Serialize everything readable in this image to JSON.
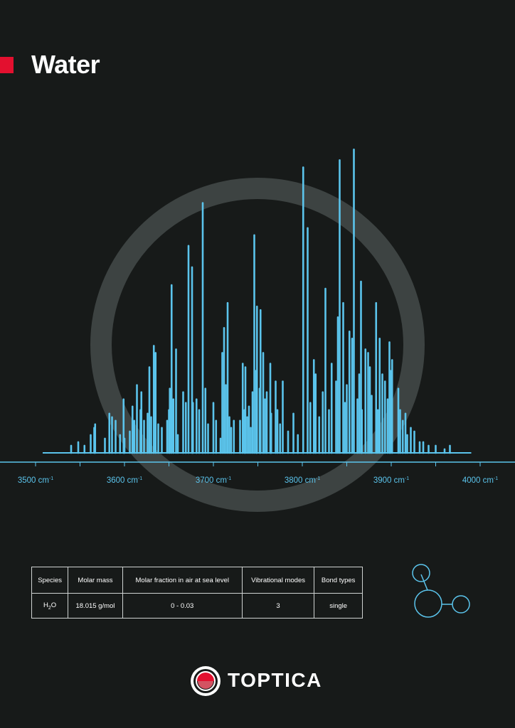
{
  "header": {
    "title": "Water"
  },
  "chart_data": {
    "type": "bar",
    "title": "",
    "xlabel": "",
    "ylabel": "",
    "x_unit": "cm-1",
    "xlim": [
      3500,
      4000
    ],
    "ylim": [
      0,
      1
    ],
    "grid": false,
    "colors": {
      "lines": "#5bc4ec",
      "axis": "#5bc4ec",
      "ring": "#3d4342"
    },
    "tick_labels": [
      {
        "value": 3500,
        "text": "3500 cm",
        "sup": "-1"
      },
      {
        "value": 3600,
        "text": "3600 cm",
        "sup": "-1"
      },
      {
        "value": 3700,
        "text": "3700 cm",
        "sup": "-1"
      },
      {
        "value": 3800,
        "text": "3800 cm",
        "sup": "-1"
      },
      {
        "value": 3900,
        "text": "3900 cm",
        "sup": "-1"
      },
      {
        "value": 4000,
        "text": "4000 cm",
        "sup": "-1"
      }
    ],
    "lines": [
      {
        "x": 3540,
        "y": 0.02
      },
      {
        "x": 3548,
        "y": 0.03
      },
      {
        "x": 3555,
        "y": 0.02
      },
      {
        "x": 3562,
        "y": 0.05
      },
      {
        "x": 3566,
        "y": 0.07
      },
      {
        "x": 3567,
        "y": 0.08
      },
      {
        "x": 3578,
        "y": 0.04
      },
      {
        "x": 3583,
        "y": 0.11
      },
      {
        "x": 3586,
        "y": 0.1
      },
      {
        "x": 3590,
        "y": 0.09
      },
      {
        "x": 3595,
        "y": 0.05
      },
      {
        "x": 3600,
        "y": 0.04
      },
      {
        "x": 3606,
        "y": 0.06
      },
      {
        "x": 3609,
        "y": 0.13
      },
      {
        "x": 3611,
        "y": 0.09
      },
      {
        "x": 3614,
        "y": 0.19
      },
      {
        "x": 3619,
        "y": 0.17
      },
      {
        "x": 3622,
        "y": 0.09
      },
      {
        "x": 3626,
        "y": 0.11
      },
      {
        "x": 3628,
        "y": 0.24
      },
      {
        "x": 3630,
        "y": 0.1
      },
      {
        "x": 3633,
        "y": 0.3
      },
      {
        "x": 3635,
        "y": 0.28
      },
      {
        "x": 3638,
        "y": 0.08
      },
      {
        "x": 3648,
        "y": 0.09
      },
      {
        "x": 3650,
        "y": 0.12
      },
      {
        "x": 3651,
        "y": 0.18
      },
      {
        "x": 3653,
        "y": 0.47
      },
      {
        "x": 3655,
        "y": 0.15
      },
      {
        "x": 3658,
        "y": 0.29
      },
      {
        "x": 3666,
        "y": 0.17
      },
      {
        "x": 3669,
        "y": 0.14
      },
      {
        "x": 3672,
        "y": 0.58
      },
      {
        "x": 3676,
        "y": 0.52
      },
      {
        "x": 3677,
        "y": 0.14
      },
      {
        "x": 3681,
        "y": 0.15
      },
      {
        "x": 3684,
        "y": 0.12
      },
      {
        "x": 3688,
        "y": 0.7
      },
      {
        "x": 3691,
        "y": 0.18
      },
      {
        "x": 3700,
        "y": 0.14
      },
      {
        "x": 3708,
        "y": 0.04
      },
      {
        "x": 3710,
        "y": 0.28
      },
      {
        "x": 3712,
        "y": 0.35
      },
      {
        "x": 3714,
        "y": 0.19
      },
      {
        "x": 3716,
        "y": 0.42
      },
      {
        "x": 3720,
        "y": 0.07
      },
      {
        "x": 3723,
        "y": 0.09
      },
      {
        "x": 3730,
        "y": 0.09
      },
      {
        "x": 3733,
        "y": 0.25
      },
      {
        "x": 3735,
        "y": 0.12
      },
      {
        "x": 3736,
        "y": 0.24
      },
      {
        "x": 3738,
        "y": 0.1
      },
      {
        "x": 3742,
        "y": 0.07
      },
      {
        "x": 3744,
        "y": 0.17
      },
      {
        "x": 3746,
        "y": 0.61
      },
      {
        "x": 3748,
        "y": 0.23
      },
      {
        "x": 3749,
        "y": 0.41
      },
      {
        "x": 3753,
        "y": 0.4
      },
      {
        "x": 3756,
        "y": 0.28
      },
      {
        "x": 3760,
        "y": 0.17
      },
      {
        "x": 3764,
        "y": 0.25
      },
      {
        "x": 3765,
        "y": 0.11
      },
      {
        "x": 3770,
        "y": 0.2
      },
      {
        "x": 3775,
        "y": 0.08
      },
      {
        "x": 3778,
        "y": 0.2
      },
      {
        "x": 3790,
        "y": 0.11
      },
      {
        "x": 3795,
        "y": 0.05
      },
      {
        "x": 3801,
        "y": 0.8
      },
      {
        "x": 3806,
        "y": 0.63
      },
      {
        "x": 3809,
        "y": 0.14
      },
      {
        "x": 3813,
        "y": 0.26
      },
      {
        "x": 3815,
        "y": 0.22
      },
      {
        "x": 3823,
        "y": 0.17
      },
      {
        "x": 3826,
        "y": 0.46
      },
      {
        "x": 3833,
        "y": 0.25
      },
      {
        "x": 3838,
        "y": 0.2
      },
      {
        "x": 3842,
        "y": 0.82
      },
      {
        "x": 3846,
        "y": 0.42
      },
      {
        "x": 3850,
        "y": 0.19
      },
      {
        "x": 3853,
        "y": 0.34
      },
      {
        "x": 3858,
        "y": 0.85
      },
      {
        "x": 3862,
        "y": 0.15
      },
      {
        "x": 3864,
        "y": 0.22
      },
      {
        "x": 3867,
        "y": 0.12
      },
      {
        "x": 3871,
        "y": 0.29
      },
      {
        "x": 3876,
        "y": 0.24
      },
      {
        "x": 3878,
        "y": 0.16
      },
      {
        "x": 3883,
        "y": 0.42
      },
      {
        "x": 3887,
        "y": 0.32
      },
      {
        "x": 3893,
        "y": 0.2
      },
      {
        "x": 3896,
        "y": 0.15
      },
      {
        "x": 3899,
        "y": 0.23
      },
      {
        "x": 3901,
        "y": 0.26
      },
      {
        "x": 3908,
        "y": 0.18
      },
      {
        "x": 3910,
        "y": 0.12
      },
      {
        "x": 3918,
        "y": 0.05
      },
      {
        "x": 3922,
        "y": 0.07
      },
      {
        "x": 3926,
        "y": 0.06
      },
      {
        "x": 3932,
        "y": 0.03
      },
      {
        "x": 3936,
        "y": 0.03
      },
      {
        "x": 3942,
        "y": 0.02
      },
      {
        "x": 3950,
        "y": 0.02
      },
      {
        "x": 3960,
        "y": 0.01
      },
      {
        "x": 3966,
        "y": 0.02
      },
      {
        "x": 3599,
        "y": 0.15
      },
      {
        "x": 3618,
        "y": 0.12
      },
      {
        "x": 3642,
        "y": 0.07
      },
      {
        "x": 3660,
        "y": 0.05
      },
      {
        "x": 3694,
        "y": 0.08
      },
      {
        "x": 3703,
        "y": 0.09
      },
      {
        "x": 3718,
        "y": 0.1
      },
      {
        "x": 3740,
        "y": 0.13
      },
      {
        "x": 3752,
        "y": 0.18
      },
      {
        "x": 3758,
        "y": 0.15
      },
      {
        "x": 3772,
        "y": 0.12
      },
      {
        "x": 3784,
        "y": 0.06
      },
      {
        "x": 3819,
        "y": 0.1
      },
      {
        "x": 3830,
        "y": 0.12
      },
      {
        "x": 3840,
        "y": 0.38
      },
      {
        "x": 3848,
        "y": 0.14
      },
      {
        "x": 3856,
        "y": 0.32
      },
      {
        "x": 3866,
        "y": 0.48
      },
      {
        "x": 3874,
        "y": 0.28
      },
      {
        "x": 3885,
        "y": 0.12
      },
      {
        "x": 3890,
        "y": 0.22
      },
      {
        "x": 3898,
        "y": 0.31
      },
      {
        "x": 3913,
        "y": 0.09
      },
      {
        "x": 3916,
        "y": 0.11
      }
    ]
  },
  "table": {
    "headers": [
      "Species",
      "Molar mass",
      "Molar fraction in air at sea level",
      "Vibrational modes",
      "Bond types"
    ],
    "row": {
      "species_main": "H",
      "species_sub": "2",
      "species_tail": "O",
      "molar_mass": "18.015 g/mol",
      "molar_fraction": "0 - 0.03",
      "vibrational_modes": "3",
      "bond_types": "single"
    }
  },
  "logo": {
    "text": "TOPTICA",
    "colors": {
      "red": "#e3102f",
      "white": "#ffffff"
    }
  },
  "molecule_icon": {
    "name": "molecule-icon",
    "color": "#5bc4ec"
  }
}
